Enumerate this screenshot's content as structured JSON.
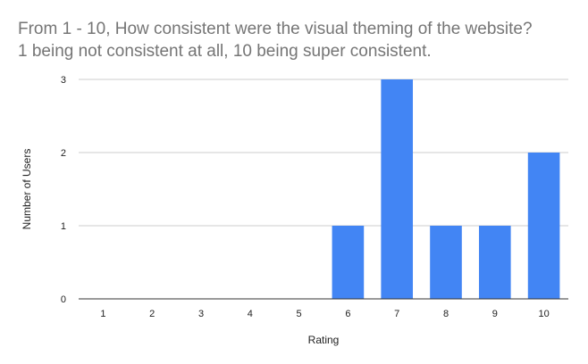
{
  "chart_data": {
    "type": "bar",
    "title": "From 1 - 10, How consistent were the visual theming of the website?\n1 being not consistent at all, 10 being super consistent.",
    "xlabel": "Rating",
    "ylabel": "Number of Users",
    "categories": [
      "1",
      "2",
      "3",
      "4",
      "5",
      "6",
      "7",
      "8",
      "9",
      "10"
    ],
    "values": [
      0,
      0,
      0,
      0,
      0,
      1,
      3,
      1,
      1,
      2
    ],
    "ylim": [
      0,
      3
    ],
    "yticks": [
      0,
      1,
      2,
      3
    ],
    "grid": true,
    "legend": "none",
    "colors": {
      "bar": "#4285f4",
      "grid": "#cccccc",
      "axis": "#333333"
    }
  }
}
